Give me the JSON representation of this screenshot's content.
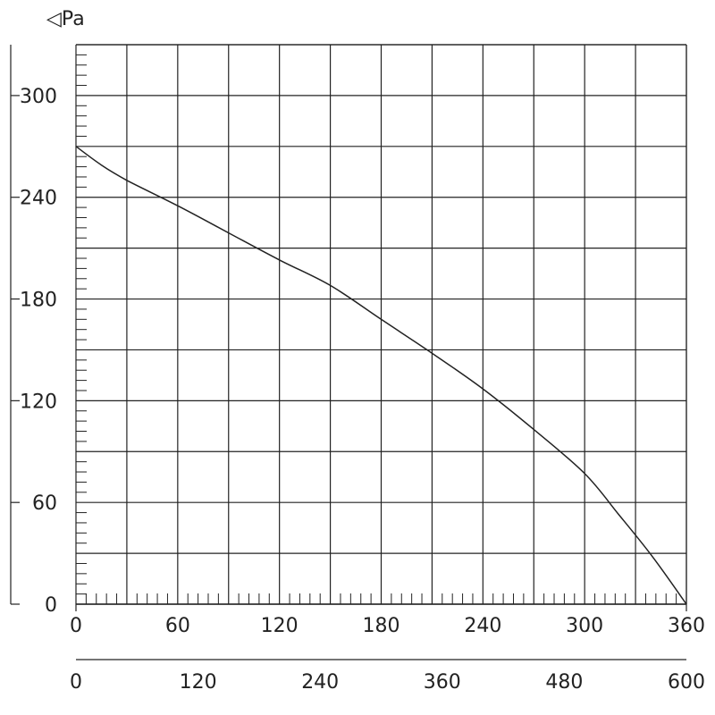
{
  "chart_data": {
    "type": "line",
    "title": "",
    "ylabel": "◁Pa",
    "grid": true,
    "x_primary": {
      "ticks": [
        0,
        60,
        120,
        180,
        240,
        300,
        360
      ],
      "tick_labels": [
        "0",
        "60",
        "120",
        "180",
        "240",
        "300",
        "360"
      ],
      "range": [
        0,
        360
      ]
    },
    "x_secondary": {
      "ticks": [
        0,
        120,
        240,
        360,
        480,
        600
      ],
      "tick_labels": [
        "0",
        "120",
        "240",
        "360",
        "480",
        "600"
      ],
      "range": [
        0,
        600
      ]
    },
    "y": {
      "ticks": [
        0,
        60,
        120,
        180,
        240,
        300
      ],
      "tick_labels": [
        "0",
        "60",
        "120",
        "180",
        "240",
        "300"
      ],
      "range": [
        0,
        330
      ]
    },
    "series": [
      {
        "color": "#222222",
        "x": [
          0,
          15,
          30,
          60,
          90,
          120,
          150,
          180,
          210,
          240,
          270,
          300,
          320,
          340,
          360
        ],
        "y": [
          270,
          259,
          250,
          235,
          219,
          203,
          188,
          168,
          148,
          127,
          103,
          77,
          53,
          28,
          0
        ]
      }
    ]
  }
}
